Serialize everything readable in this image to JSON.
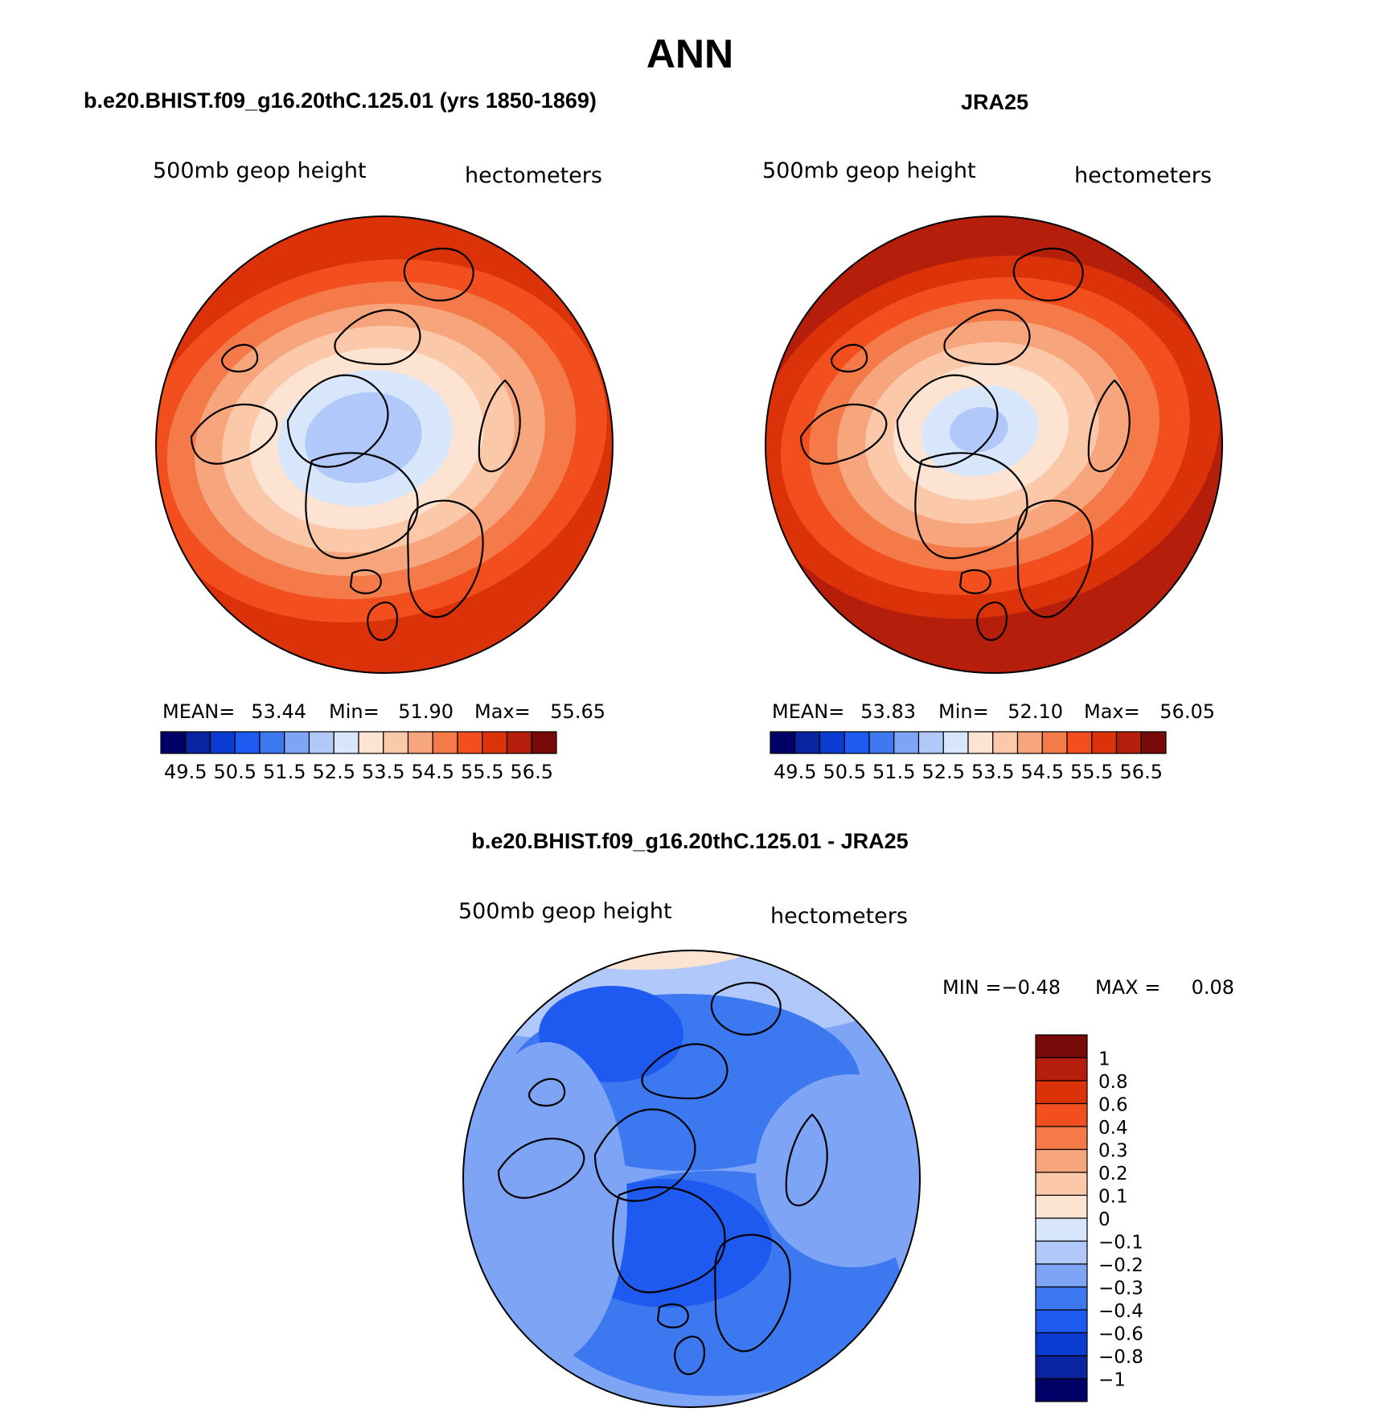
{
  "chart_data": [
    {
      "type": "heatmap",
      "projection": "north-polar-stereographic",
      "title": "b.e20.BHIST.f09_g16.20thC.125.01 (yrs 1850-1869)",
      "variable": "500mb geop height",
      "units": "hectometers",
      "stats": {
        "mean_label": "MEAN=",
        "mean": "53.44",
        "min_label": "Min=",
        "min": "51.90",
        "max_label": "Max=",
        "max": "55.65"
      },
      "colorbar_ticks": [
        "49.5",
        "50.5",
        "51.5",
        "52.5",
        "53.5",
        "54.5",
        "55.5",
        "56.5"
      ],
      "levels": [
        49.5,
        50,
        50.5,
        51,
        51.5,
        52,
        52.5,
        53,
        53.5,
        54,
        54.5,
        55,
        55.5,
        56,
        56.5
      ],
      "colors": [
        "#000066",
        "#0a23a0",
        "#0a3cd2",
        "#1e5af0",
        "#3c78f0",
        "#7ea5f5",
        "#b0c8fa",
        "#d7e6fa",
        "#fde4d2",
        "#fbc8aa",
        "#f7a57d",
        "#f47a4a",
        "#f24e1e",
        "#dc320a",
        "#b41e0a",
        "#780a0a"
      ],
      "zones_center_to_edge": [
        52.1,
        52.4,
        52.8,
        53.2,
        53.7,
        54.2,
        54.7,
        55.2,
        55.7
      ]
    },
    {
      "type": "heatmap",
      "projection": "north-polar-stereographic",
      "title": "JRA25",
      "variable": "500mb geop height",
      "units": "hectometers",
      "stats": {
        "mean_label": "MEAN=",
        "mean": "53.83",
        "min_label": "Min=",
        "min": "52.10",
        "max_label": "Max=",
        "max": "56.05"
      },
      "colorbar_ticks": [
        "49.5",
        "50.5",
        "51.5",
        "52.5",
        "53.5",
        "54.5",
        "55.5",
        "56.5"
      ],
      "levels": [
        49.5,
        50,
        50.5,
        51,
        51.5,
        52,
        52.5,
        53,
        53.5,
        54,
        54.5,
        55,
        55.5,
        56,
        56.5
      ],
      "colors": [
        "#000066",
        "#0a23a0",
        "#0a3cd2",
        "#1e5af0",
        "#3c78f0",
        "#7ea5f5",
        "#b0c8fa",
        "#d7e6fa",
        "#fde4d2",
        "#fbc8aa",
        "#f7a57d",
        "#f47a4a",
        "#f24e1e",
        "#dc320a",
        "#b41e0a",
        "#780a0a"
      ],
      "zones_center_to_edge": [
        52.4,
        52.8,
        53.2,
        53.7,
        54.2,
        54.7,
        55.2,
        55.7,
        56.2
      ]
    },
    {
      "type": "heatmap",
      "projection": "north-polar-stereographic",
      "title": "b.e20.BHIST.f09_g16.20thC.125.01 - JRA25",
      "variable": "500mb geop height",
      "units": "hectometers",
      "stats": {
        "min_label": "MIN =",
        "min": "−0.48",
        "max_label": "MAX =",
        "max": "0.08"
      },
      "colorbar_labels": [
        "1",
        "0.8",
        "0.6",
        "0.4",
        "0.3",
        "0.2",
        "0.1",
        "0",
        "−0.1",
        "−0.2",
        "−0.3",
        "−0.4",
        "−0.6",
        "−0.8",
        "−1"
      ],
      "colors_top_to_bottom": [
        "#780a0a",
        "#b41e0a",
        "#dc320a",
        "#f24e1e",
        "#f47a4a",
        "#f7a57d",
        "#fbc8aa",
        "#fde4d2",
        "#d7e6fa",
        "#b0c8fa",
        "#7ea5f5",
        "#3c78f0",
        "#1e5af0",
        "#0a3cd2",
        "#0a23a0",
        "#000066"
      ],
      "dominant_range": [
        -0.45,
        -0.15
      ]
    }
  ],
  "figure": {
    "season_title": "ANN"
  }
}
